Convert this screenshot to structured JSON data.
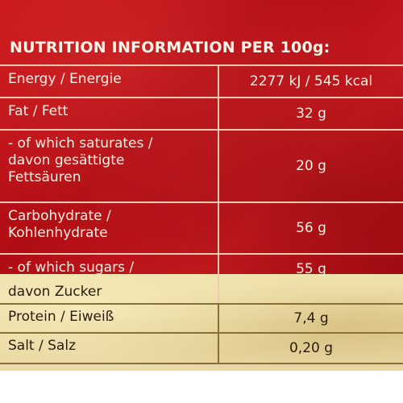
{
  "title": "NUTRITION INFORMATION PER 100g:",
  "rows": [
    {
      "lines": [
        "Energy / Energie"
      ],
      "value": "2277 kJ / 545 kcal"
    },
    {
      "lines": [
        "Fat / Fett"
      ],
      "value": "32 g"
    },
    {
      "lines": [
        "- of which saturates /",
        "davon gesättigte",
        "Fettsäuren"
      ],
      "value": "20 g"
    },
    {
      "lines": [
        "Carbohydrate /",
        "Kohlenhydrate"
      ],
      "value": "56 g"
    },
    {
      "lines": [
        "- of which sugars /",
        "davon Zucker"
      ],
      "value": "55 g"
    },
    {
      "lines": [
        "Protein / Eiweiß"
      ],
      "value": "7,4 g"
    },
    {
      "lines": [
        "Salt / Salz"
      ],
      "value": "0,20 g"
    }
  ],
  "colors": {
    "red": "#c8141a",
    "gold": "#e7d49a",
    "text_light": "#fdeee2",
    "text_dark": "#2a1c0e"
  }
}
